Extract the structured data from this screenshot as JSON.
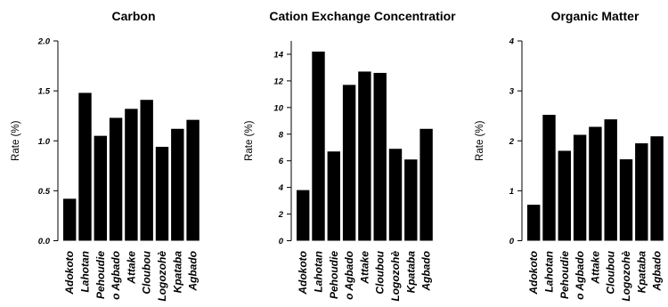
{
  "chart_data": [
    {
      "type": "bar",
      "title": "Carbon",
      "ylabel": "Rate (%)",
      "ylim": [
        0,
        2.0
      ],
      "yticks": [
        "0.0",
        "0.5",
        "1.0",
        "1.5",
        "2.0"
      ],
      "categories": [
        "Adokoto",
        "Lahotan",
        "Pehoudie",
        "o Agbado",
        "Attake",
        "Cloubou",
        "Logozohè",
        "Kpataba",
        "Agbado"
      ],
      "values": [
        0.42,
        1.48,
        1.05,
        1.23,
        1.32,
        1.41,
        0.94,
        1.12,
        1.21
      ],
      "color": "#000000"
    },
    {
      "type": "bar",
      "title": "Cation Exchange Concentratior",
      "ylabel": "Rate (%)",
      "ylim": [
        0,
        15
      ],
      "yticks": [
        "0",
        "2",
        "4",
        "6",
        "8",
        "10",
        "12",
        "14"
      ],
      "categories": [
        "Adokoto",
        "Lahotan",
        "Pehoudie",
        "o Agbado",
        "Attake",
        "Cloubou",
        "Logozohè",
        "Kpataba",
        "Agbado"
      ],
      "values": [
        3.8,
        14.2,
        6.7,
        11.7,
        12.7,
        12.6,
        6.9,
        6.1,
        8.4
      ],
      "color": "#000000"
    },
    {
      "type": "bar",
      "title": "Organic Matter",
      "ylabel": "Rate (%)",
      "ylim": [
        0,
        4
      ],
      "yticks": [
        "0",
        "1",
        "2",
        "3",
        "4"
      ],
      "categories": [
        "Adokoto",
        "Lahotan",
        "Pehoudie",
        "o Agbado",
        "Attake",
        "Cloubou",
        "Logozohè",
        "Kpataba",
        "Agbado"
      ],
      "values": [
        0.72,
        2.52,
        1.8,
        2.12,
        2.28,
        2.43,
        1.63,
        1.95,
        2.09
      ],
      "color": "#000000"
    }
  ]
}
